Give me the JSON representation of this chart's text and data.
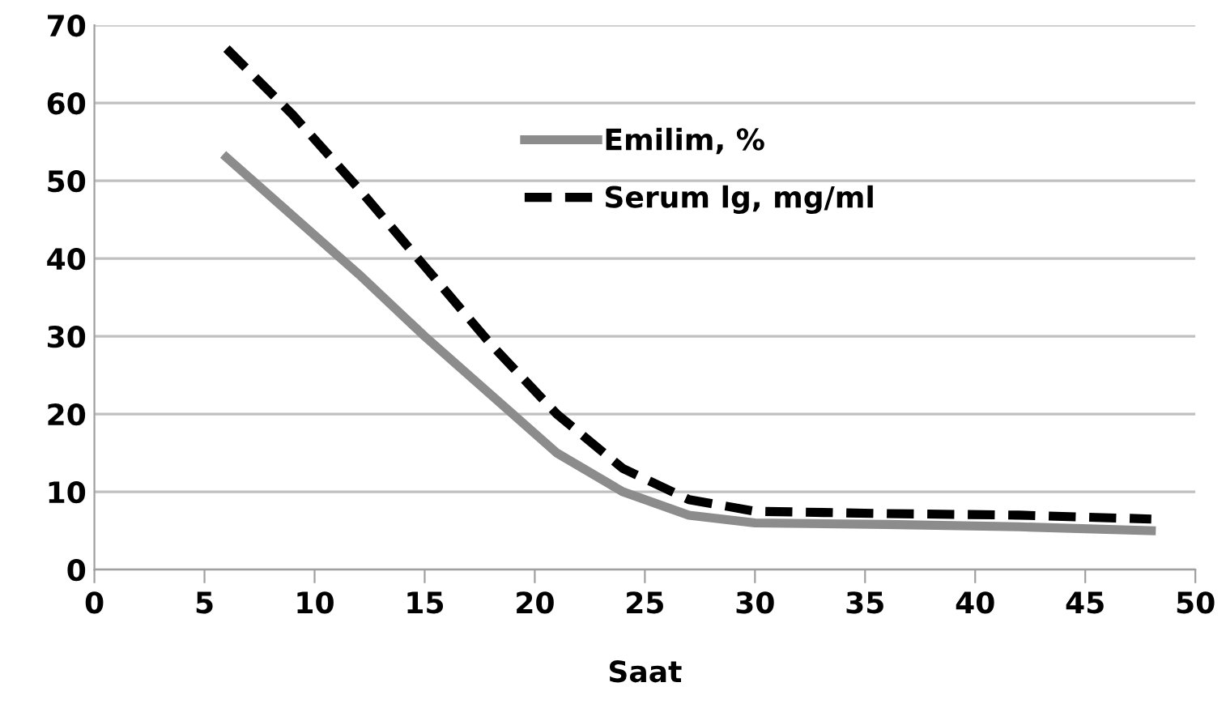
{
  "chart_data": {
    "type": "line",
    "xlabel": "Saat",
    "x": [
      6,
      9,
      12,
      15,
      18,
      21,
      24,
      27,
      30,
      36,
      42,
      48
    ],
    "series": [
      {
        "name": "Emilim, %",
        "color": "#8c8c8c",
        "line_style": "solid",
        "values": [
          53,
          45.5,
          38,
          30,
          22.5,
          15,
          10,
          7,
          6,
          5.8,
          5.5,
          5
        ]
      },
      {
        "name": "Serum lg, mg/ml",
        "color": "#000000",
        "line_style": "dashed",
        "values": [
          67,
          58.5,
          49,
          39,
          29,
          20,
          13,
          9,
          7.5,
          7.2,
          7,
          6.5
        ]
      }
    ],
    "xlim": [
      0,
      50
    ],
    "xticks": [
      0,
      5,
      10,
      15,
      20,
      25,
      30,
      35,
      40,
      45,
      50
    ],
    "ylim": [
      0,
      70
    ],
    "yticks": [
      0,
      10,
      20,
      30,
      40,
      50,
      60,
      70
    ],
    "grid": "y",
    "legend": "top",
    "marker": "none"
  }
}
